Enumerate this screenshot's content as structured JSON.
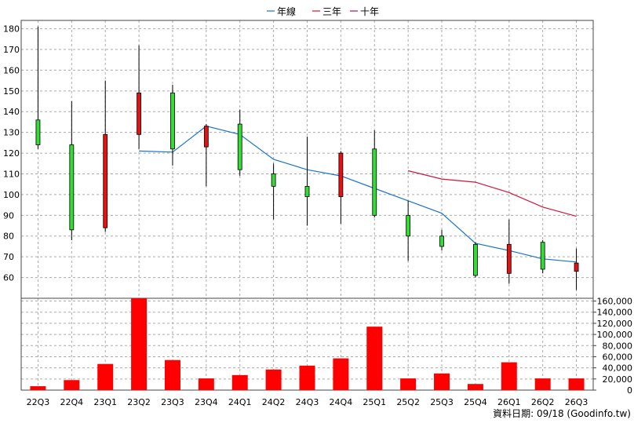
{
  "legend": [
    {
      "name": "年線",
      "color": "#1a73c8"
    },
    {
      "name": "三年",
      "color": "#d2143c"
    },
    {
      "name": "十年",
      "color": "#9c1a5a"
    }
  ],
  "footer_text": "資料日期: 09/18 (Goodinfo.tw)",
  "colors": {
    "up": "#33dd33",
    "down": "#e81010",
    "volume": "#ff0000",
    "grid": "#aaaaaa",
    "wick": "#000000"
  },
  "chart_data": [
    {
      "type": "candlestick",
      "ylim": [
        50,
        184
      ],
      "yticks": [
        60,
        70,
        80,
        90,
        100,
        110,
        120,
        130,
        140,
        150,
        160,
        170,
        180
      ],
      "grid": true,
      "legend_position": "top-center",
      "categories": [
        "22Q3",
        "22Q4",
        "23Q1",
        "23Q2",
        "23Q3",
        "23Q4",
        "24Q1",
        "24Q2",
        "24Q3",
        "24Q4",
        "25Q1",
        "25Q2",
        "25Q3",
        "25Q4",
        "26Q1",
        "26Q2",
        "26Q3"
      ],
      "candles": [
        {
          "open": 124,
          "high": 181,
          "low": 122,
          "close": 136
        },
        {
          "open": 83,
          "high": 145,
          "low": 78,
          "close": 124
        },
        {
          "open": 129,
          "high": 155,
          "low": 82,
          "close": 84
        },
        {
          "open": 149,
          "high": 172,
          "low": 122,
          "close": 129
        },
        {
          "open": 122,
          "high": 153,
          "low": 114,
          "close": 149
        },
        {
          "open": 133,
          "high": 134,
          "low": 104,
          "close": 123
        },
        {
          "open": 112,
          "high": 141,
          "low": 109,
          "close": 134
        },
        {
          "open": 104,
          "high": 115,
          "low": 88,
          "close": 110
        },
        {
          "open": 99,
          "high": 128,
          "low": 85,
          "close": 104
        },
        {
          "open": 120,
          "high": 121,
          "low": 86,
          "close": 99
        },
        {
          "open": 90,
          "high": 131,
          "low": 89,
          "close": 122
        },
        {
          "open": 80,
          "high": 97,
          "low": 68,
          "close": 90
        },
        {
          "open": 75,
          "high": 83,
          "low": 73,
          "close": 80
        },
        {
          "open": 61,
          "high": 77,
          "low": 60,
          "close": 76
        },
        {
          "open": 76,
          "high": 88,
          "low": 57,
          "close": 62
        },
        {
          "open": 64,
          "high": 78,
          "low": 62,
          "close": 77
        },
        {
          "open": 67,
          "high": 74,
          "low": 54,
          "close": 63
        }
      ],
      "series": [
        {
          "name": "年線",
          "values": [
            null,
            null,
            null,
            121,
            120.5,
            133,
            129,
            117,
            112,
            109,
            103,
            97,
            91,
            76.5,
            73,
            69,
            67.5
          ]
        },
        {
          "name": "三年",
          "values": [
            null,
            null,
            null,
            null,
            null,
            null,
            null,
            null,
            null,
            null,
            null,
            111.5,
            107.5,
            106,
            101,
            94,
            89.5
          ]
        },
        {
          "name": "十年",
          "values": [
            null,
            null,
            null,
            null,
            null,
            null,
            null,
            null,
            null,
            null,
            null,
            null,
            null,
            null,
            null,
            null,
            null
          ]
        }
      ]
    },
    {
      "type": "bar",
      "categories": [
        "22Q3",
        "22Q4",
        "23Q1",
        "23Q2",
        "23Q3",
        "23Q4",
        "24Q1",
        "24Q2",
        "24Q3",
        "24Q4",
        "25Q1",
        "25Q2",
        "25Q3",
        "25Q4",
        "26Q1",
        "26Q2",
        "26Q3"
      ],
      "values": [
        7000,
        18000,
        47000,
        165000,
        54000,
        21000,
        27000,
        37000,
        44000,
        57000,
        114000,
        21000,
        30000,
        11000,
        50000,
        21000,
        21000
      ],
      "ylim": [
        0,
        165000
      ],
      "yticks": [
        "0",
        "20,000",
        "40,000",
        "60,000",
        "80,000",
        "100,000",
        "120,000",
        "140,000",
        "160,000"
      ],
      "ytick_values": [
        0,
        20000,
        40000,
        60000,
        80000,
        100000,
        120000,
        140000,
        160000
      ]
    }
  ]
}
